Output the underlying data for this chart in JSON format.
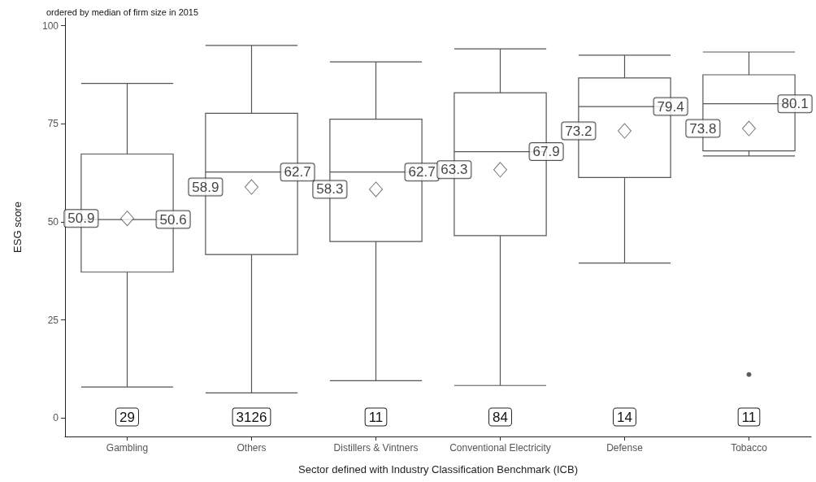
{
  "chart_data": {
    "type": "box",
    "title": "ordered by median of firm size in 2015",
    "xlabel": "Sector defined with Industry Classification Benchmark (ICB)",
    "ylabel": "ESG score",
    "categories": [
      "Gambling",
      "Others",
      "Distillers & Vintners",
      "Conventional Electricity",
      "Defense",
      "Tobacco"
    ],
    "boxes": [
      {
        "low": 7.9,
        "q1": 37.2,
        "median": 50.6,
        "q3": 67.3,
        "high": 85.3,
        "mean": 50.9
      },
      {
        "low": 6.4,
        "q1": 41.7,
        "median": 62.7,
        "q3": 77.7,
        "high": 95.0,
        "mean": 58.9
      },
      {
        "low": 9.5,
        "q1": 45.0,
        "median": 62.7,
        "q3": 76.2,
        "high": 90.8,
        "mean": 58.3
      },
      {
        "low": 8.3,
        "q1": 46.5,
        "median": 67.9,
        "q3": 82.9,
        "high": 94.1,
        "mean": 63.3
      },
      {
        "low": 39.5,
        "q1": 61.3,
        "median": 79.4,
        "q3": 86.7,
        "high": 92.5,
        "mean": 73.2
      },
      {
        "low": 66.8,
        "q1": 68.1,
        "median": 80.1,
        "q3": 87.5,
        "high": 93.3,
        "mean": 73.8,
        "outliers": [
          11.1
        ]
      }
    ],
    "annotations": [
      "29",
      "3126",
      "11",
      "84",
      "14",
      "11",
      "50.9",
      "58.9",
      "58.3",
      "63.3",
      "73.2",
      "73.8",
      {
        "text": "50.6",
        "x": "Gambling",
        "y": 50.6
      },
      {
        "text": "62.7",
        "x": "Others",
        "y": 62.7
      },
      {
        "text": "62.7",
        "x": "Distillers & Vintners",
        "y": 62.7
      },
      {
        "text": "67.9",
        "x": "Conventional Electricity",
        "y": 67.9
      },
      {
        "text": "79.4",
        "x": "Defense",
        "y": 79.4
      },
      {
        "text": "80.1",
        "x": "Tobacco",
        "y": 80.1
      }
    ],
    "ylim": [
      -4.7,
      102
    ],
    "yticks": [
      0,
      25,
      50,
      75,
      100
    ],
    "grid": false,
    "marker": "diamond",
    "color": "#555555"
  }
}
